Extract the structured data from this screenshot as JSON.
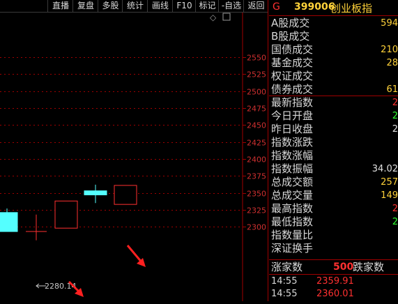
{
  "toolbar": {
    "items": [
      {
        "label": "直播"
      },
      {
        "label": "复盘"
      },
      {
        "label": "多股"
      },
      {
        "label": "统计"
      },
      {
        "label": "画线"
      },
      {
        "label": "F10"
      },
      {
        "label": "标记"
      },
      {
        "label": "-自选"
      },
      {
        "label": "返回"
      }
    ]
  },
  "chart": {
    "diamond_glyph": "◇",
    "price_ticks": [
      "2550",
      "2525",
      "2500",
      "2475",
      "2450",
      "2425",
      "2400",
      "2375",
      "2350",
      "2325",
      "2300"
    ],
    "low_marker_label": "2280.14",
    "colors": {
      "up": "#ff3030",
      "down": "#54ffff",
      "grid": "#a00000",
      "annotation": "#ff2020"
    }
  },
  "chart_data": {
    "type": "candlestick",
    "ylim": [
      2275,
      2560
    ],
    "ticks": [
      2550,
      2525,
      2500,
      2475,
      2450,
      2425,
      2400,
      2375,
      2350,
      2325,
      2300
    ],
    "candles": [
      {
        "open": 2321,
        "close": 2293,
        "high": 2327,
        "low": 2293,
        "dir": "down"
      },
      {
        "open": 2293,
        "close": 2293,
        "high": 2318,
        "low": 2280.14,
        "dir": "flat"
      },
      {
        "open": 2298,
        "close": 2338,
        "high": 2338,
        "low": 2298,
        "dir": "up"
      },
      {
        "open": 2353,
        "close": 2347,
        "high": 2362,
        "low": 2335,
        "dir": "down"
      },
      {
        "open": 2333,
        "close": 2361,
        "high": 2361,
        "low": 2333,
        "dir": "up"
      }
    ]
  },
  "quote": {
    "letter": "G",
    "code": "399006",
    "name": "创业板指",
    "rows": [
      {
        "label": "A股成交",
        "value": "594",
        "color": "#ffd23a"
      },
      {
        "label": "B股成交",
        "value": "",
        "color": "#ffd23a"
      },
      {
        "label": "国债成交",
        "value": "210",
        "color": "#ffd23a"
      },
      {
        "label": "基金成交",
        "value": "28",
        "color": "#ffd23a"
      },
      {
        "label": "权证成交",
        "value": "",
        "color": "#ffd23a"
      },
      {
        "label": "债券成交",
        "value": "61",
        "color": "#ffd23a"
      },
      {
        "label": "最新指数",
        "value": "2",
        "color": "#ff3030"
      },
      {
        "label": "今日开盘",
        "value": "2",
        "color": "#30ff30"
      },
      {
        "label": "昨日收盘",
        "value": "2",
        "color": "#e0e0e0"
      },
      {
        "label": "指数涨跌",
        "value": "",
        "color": "#ff3030"
      },
      {
        "label": "指数涨幅",
        "value": "",
        "color": "#ff3030"
      },
      {
        "label": "指数振幅",
        "value": "34.02",
        "color": "#e0e0e0"
      },
      {
        "label": "总成交额",
        "value": "257",
        "color": "#ffd23a"
      },
      {
        "label": "总成交量",
        "value": "149",
        "color": "#ffd23a"
      },
      {
        "label": "最高指数",
        "value": "2",
        "color": "#ff3030"
      },
      {
        "label": "最低指数",
        "value": "2",
        "color": "#30ff30"
      },
      {
        "label": "指数量比",
        "value": "",
        "color": "#e0e0e0"
      },
      {
        "label": "深证换手",
        "value": "",
        "color": "#e0e0e0"
      }
    ],
    "advancers_label": "涨家数",
    "advancers_value": "500",
    "decliners_label": "跌家数",
    "ticks": [
      {
        "time": "14:55",
        "price": "2359.91"
      },
      {
        "time": "14:55",
        "price": "2360.01"
      }
    ]
  }
}
